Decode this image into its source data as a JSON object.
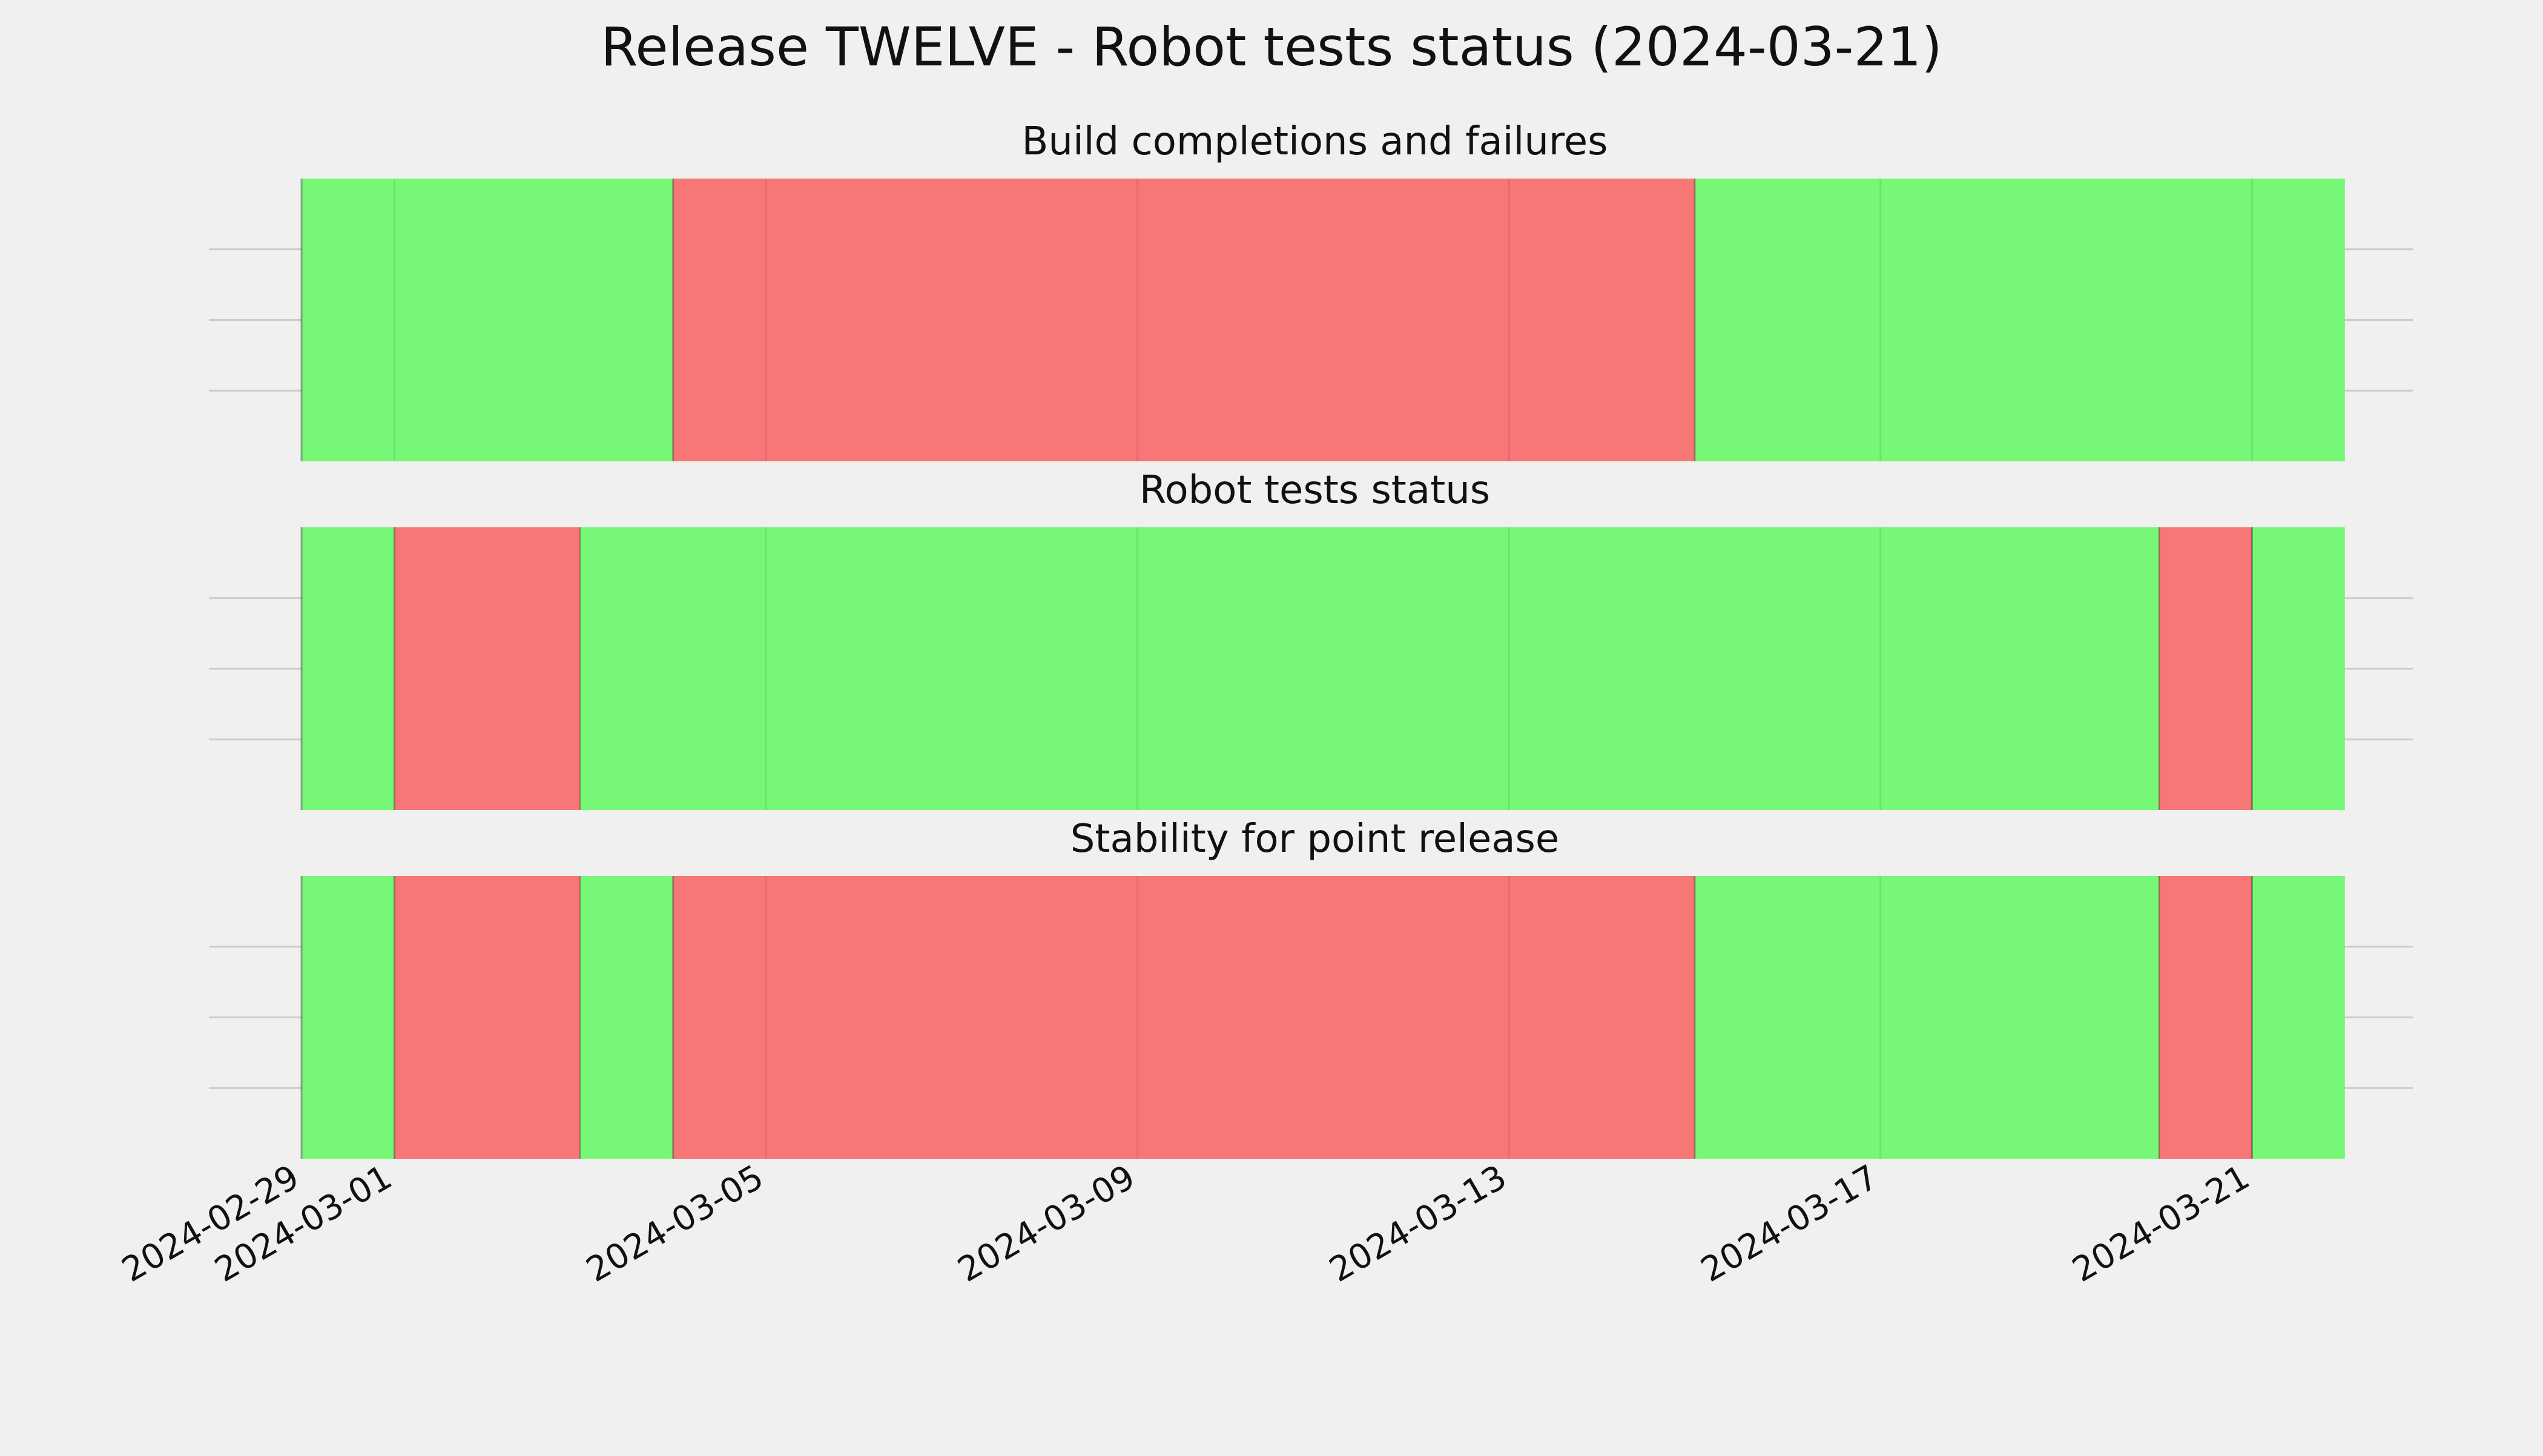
{
  "title": "Release TWELVE - Robot tests status (2024-03-21)",
  "colors": {
    "pass": "#76f776",
    "fail": "#f77676",
    "background": "#f0f0f0",
    "grid": "#cbcbcb",
    "text": "#111111"
  },
  "chart_data": [
    {
      "type": "status-timeline",
      "title": "Build completions and failures",
      "x_ticks": [
        "2024-02-29",
        "2024-03-01",
        "2024-03-05",
        "2024-03-09",
        "2024-03-13",
        "2024-03-17",
        "2024-03-21"
      ],
      "segments": [
        {
          "start": "2024-02-29",
          "end": "2024-03-04",
          "status": "pass"
        },
        {
          "start": "2024-03-04",
          "end": "2024-03-15",
          "status": "fail"
        },
        {
          "start": "2024-03-15",
          "end": "2024-03-22",
          "status": "pass"
        }
      ],
      "grid": true
    },
    {
      "type": "status-timeline",
      "title": "Robot tests status",
      "x_ticks": [
        "2024-02-29",
        "2024-03-01",
        "2024-03-05",
        "2024-03-09",
        "2024-03-13",
        "2024-03-17",
        "2024-03-21"
      ],
      "segments": [
        {
          "start": "2024-02-29",
          "end": "2024-03-01",
          "status": "pass"
        },
        {
          "start": "2024-03-01",
          "end": "2024-03-03",
          "status": "fail"
        },
        {
          "start": "2024-03-03",
          "end": "2024-03-20",
          "status": "pass"
        },
        {
          "start": "2024-03-20",
          "end": "2024-03-21",
          "status": "fail"
        },
        {
          "start": "2024-03-21",
          "end": "2024-03-22",
          "status": "pass"
        }
      ],
      "grid": true
    },
    {
      "type": "status-timeline",
      "title": "Stability for point release",
      "x_ticks": [
        "2024-02-29",
        "2024-03-01",
        "2024-03-05",
        "2024-03-09",
        "2024-03-13",
        "2024-03-17",
        "2024-03-21"
      ],
      "segments": [
        {
          "start": "2024-02-29",
          "end": "2024-03-01",
          "status": "pass"
        },
        {
          "start": "2024-03-01",
          "end": "2024-03-03",
          "status": "fail"
        },
        {
          "start": "2024-03-03",
          "end": "2024-03-04",
          "status": "pass"
        },
        {
          "start": "2024-03-04",
          "end": "2024-03-15",
          "status": "fail"
        },
        {
          "start": "2024-03-15",
          "end": "2024-03-20",
          "status": "pass"
        },
        {
          "start": "2024-03-20",
          "end": "2024-03-21",
          "status": "fail"
        },
        {
          "start": "2024-03-21",
          "end": "2024-03-22",
          "status": "pass"
        }
      ],
      "grid": true
    }
  ]
}
